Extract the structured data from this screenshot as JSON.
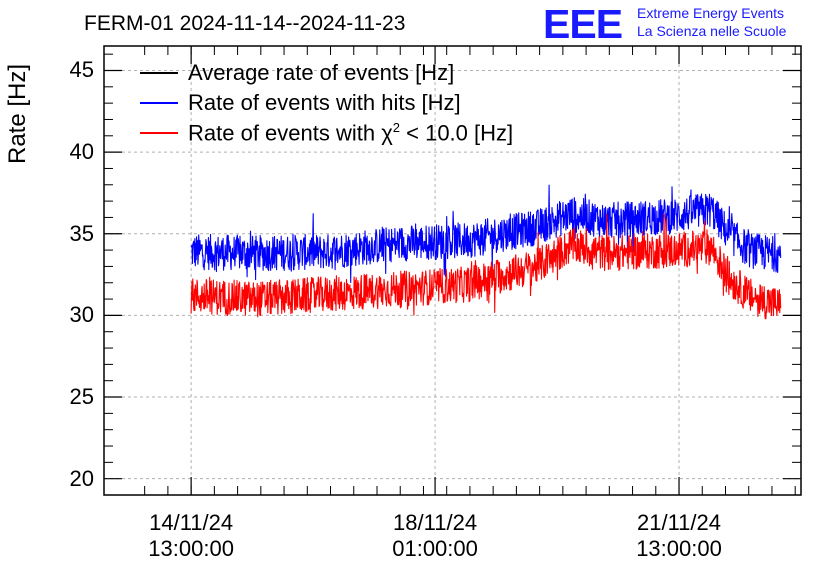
{
  "header": {
    "title": "FERM-01 2024-11-14--2024-11-23",
    "logo_mark": "EEE",
    "logo_line1": "Extreme Energy Events",
    "logo_line2": "La Scienza nelle Scuole"
  },
  "colors": {
    "average": "#000000",
    "hits": "#0000ff",
    "chi2": "#ff0000",
    "grid": "#b0b0b0"
  },
  "chart_data": {
    "type": "line",
    "title": "FERM-01 2024-11-14--2024-11-23",
    "ylabel": "Rate [Hz]",
    "ylim": [
      19,
      46.5
    ],
    "xlim": [
      "2024-11-13 07:00",
      "2024-11-23 07:00"
    ],
    "grid": true,
    "legend_position": "top-left",
    "x_ticks": [
      {
        "line1": "14/11/24",
        "line2": "13:00:00"
      },
      {
        "line1": "18/11/24",
        "line2": "01:00:00"
      },
      {
        "line1": "21/11/24",
        "line2": "13:00:00"
      }
    ],
    "y_ticks": [
      "20",
      "25",
      "30",
      "35",
      "40",
      "45"
    ],
    "legend": [
      {
        "label": "Average rate of events [Hz]",
        "color": "#000000"
      },
      {
        "label": "Rate of events with hits [Hz]",
        "color": "#0000ff"
      },
      {
        "label_pre": "Rate of events with ",
        "label_symbol": "χ",
        "label_sup": "2",
        "label_post": " < 10.0 [Hz]",
        "color": "#ff0000"
      }
    ],
    "x": [
      "2024-11-14 13:00",
      "2024-11-15 12:00",
      "2024-11-16 12:00",
      "2024-11-17 12:00",
      "2024-11-18 12:00",
      "2024-11-19 12:00",
      "2024-11-20 00:00",
      "2024-11-20 12:00",
      "2024-11-21 12:00",
      "2024-11-22 00:00",
      "2024-11-22 06:00",
      "2024-11-22 13:00",
      "2024-11-23 00:00"
    ],
    "series": [
      {
        "name": "Rate of events with hits [Hz]",
        "color": "#0000ff",
        "values": [
          33.9,
          33.8,
          33.9,
          34.4,
          34.6,
          35.4,
          36.2,
          35.8,
          36.1,
          36.5,
          35.0,
          34.0,
          33.7
        ],
        "spread": 1.1
      },
      {
        "name": "Rate of events with χ2 < 10.0 [Hz]",
        "color": "#ff0000",
        "values": [
          31.2,
          31.0,
          31.3,
          31.6,
          31.9,
          33.0,
          34.3,
          33.8,
          34.0,
          34.2,
          32.3,
          31.2,
          30.6
        ],
        "spread": 1.1
      }
    ]
  }
}
